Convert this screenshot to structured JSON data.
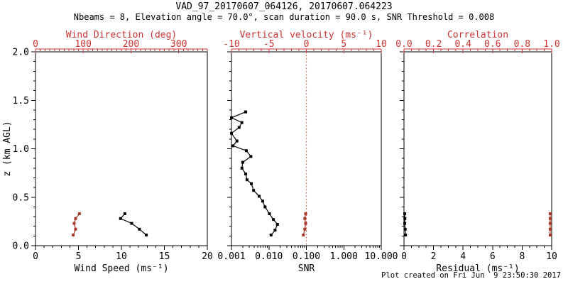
{
  "figure": {
    "title": "VAD_97_20170607_064126, 20170607.064223",
    "subtitle": "Nbeams = 8, Elevation angle = 70.0°, scan duration = 90.0 s, SNR Threshold = 0.008",
    "footer": "Plot created on Fri Jun  9 23:50:30 2017"
  },
  "colors": {
    "black": "#000000",
    "axis_red": "#cf3333",
    "data_red": "#a83a2b",
    "ref_line_red": "#cc5544",
    "background": "#ffffff"
  },
  "chart_data": {
    "type": "line",
    "description": "VAD wind retrieval profiles: three panels sharing vertical axis z (km AGL), range 0-2 km, grid off, square markers joined by lines",
    "y_axis": {
      "label": "z (km AGL)",
      "min": 0.0,
      "max": 2.0,
      "tick_values": [
        0.0,
        0.5,
        1.0,
        1.5,
        2.0
      ],
      "tick_labels": [
        "0.0",
        "0.5",
        "1.0",
        "1.5",
        "2.0"
      ],
      "minor_step": 0.1
    },
    "panels": [
      {
        "name": "wind",
        "bottom_axis": {
          "label": "Wind Speed (ms⁻¹)",
          "scale": "linear",
          "min": 0,
          "max": 20,
          "tick_values": [
            0,
            5,
            10,
            15,
            20
          ],
          "tick_labels": [
            "0",
            "5",
            "10",
            "15",
            "20"
          ],
          "minor_step": 1,
          "color": "black"
        },
        "top_axis": {
          "label": "Wind Direction (deg)",
          "scale": "linear",
          "min": 0,
          "max": 360,
          "tick_values": [
            0,
            100,
            200,
            300
          ],
          "tick_labels": [
            "0",
            "100",
            "200",
            "300"
          ],
          "minor_step": 10,
          "color": "red"
        },
        "series": [
          {
            "name": "wind-speed",
            "axis": "bottom",
            "color": "black",
            "z": [
              0.33,
              0.28,
              0.23,
              0.17,
              0.11
            ],
            "values": [
              10.4,
              9.9,
              11.2,
              12.1,
              12.9
            ]
          },
          {
            "name": "wind-direction",
            "axis": "top",
            "color": "red",
            "z": [
              0.33,
              0.28,
              0.23,
              0.17,
              0.11
            ],
            "values": [
              92,
              84,
              81,
              84,
              79
            ]
          }
        ]
      },
      {
        "name": "snr",
        "bottom_axis": {
          "label": "SNR",
          "scale": "log",
          "min": 0.001,
          "max": 10,
          "tick_values": [
            0.001,
            0.01,
            0.1,
            1,
            10
          ],
          "tick_labels": [
            "0.001",
            "0.010",
            "0.100",
            "1.000",
            "10.000"
          ],
          "color": "black"
        },
        "top_axis": {
          "label": "Vertical velocity (ms⁻¹)",
          "scale": "linear",
          "min": -10,
          "max": 10,
          "tick_values": [
            -10,
            -5,
            0,
            5,
            10
          ],
          "tick_labels": [
            "-10",
            "-5",
            "0",
            "5",
            "10"
          ],
          "minor_step": 1,
          "color": "red"
        },
        "reference_line": {
          "axis": "top",
          "value": 0,
          "style": "dotted",
          "color": "red"
        },
        "series": [
          {
            "name": "snr-profile",
            "axis": "bottom",
            "color": "black",
            "z": [
              1.38,
              1.32,
              1.27,
              1.22,
              1.16,
              1.08,
              1.03,
              0.98,
              0.92,
              0.86,
              0.8,
              0.74,
              0.68,
              0.64,
              0.57,
              0.51,
              0.46,
              0.4,
              0.33,
              0.27,
              0.22,
              0.16,
              0.11
            ],
            "values": [
              0.0024,
              0.001,
              0.0019,
              0.0016,
              0.001,
              0.0014,
              0.0011,
              0.0025,
              0.0033,
              0.002,
              0.0019,
              0.0024,
              0.0026,
              0.0034,
              0.0039,
              0.0055,
              0.0068,
              0.0079,
              0.0103,
              0.0132,
              0.0169,
              0.0146,
              0.0114
            ]
          },
          {
            "name": "vertical-velocity",
            "axis": "top",
            "color": "red",
            "z": [
              0.33,
              0.28,
              0.23,
              0.17,
              0.11
            ],
            "values": [
              -0.1,
              -0.2,
              -0.1,
              -0.2,
              -0.4
            ]
          }
        ]
      },
      {
        "name": "residual",
        "bottom_axis": {
          "label": "Residual (ms⁻¹)",
          "scale": "linear",
          "min": 0,
          "max": 10,
          "tick_values": [
            0,
            2,
            4,
            6,
            8,
            10
          ],
          "tick_labels": [
            "0",
            "2",
            "4",
            "6",
            "8",
            "10"
          ],
          "minor_step": 0.5,
          "color": "black"
        },
        "top_axis": {
          "label": "Correlation",
          "scale": "linear",
          "min": 0.0,
          "max": 1.0,
          "tick_values": [
            0.0,
            0.2,
            0.4,
            0.6,
            0.8,
            1.0
          ],
          "tick_labels": [
            "0.0",
            "0.2",
            "0.4",
            "0.6",
            "0.8",
            "1.0"
          ],
          "minor_step": 0.05,
          "color": "red"
        },
        "series": [
          {
            "name": "residual-profile",
            "axis": "bottom",
            "color": "black",
            "z": [
              0.33,
              0.28,
              0.23,
              0.17,
              0.11
            ],
            "values": [
              0.05,
              0.06,
              0.05,
              0.08,
              0.1
            ]
          },
          {
            "name": "correlation-profile",
            "axis": "top",
            "color": "red",
            "z": [
              0.33,
              0.28,
              0.23,
              0.17,
              0.11
            ],
            "values": [
              0.99,
              0.99,
              0.99,
              0.99,
              0.99
            ]
          }
        ]
      }
    ]
  }
}
